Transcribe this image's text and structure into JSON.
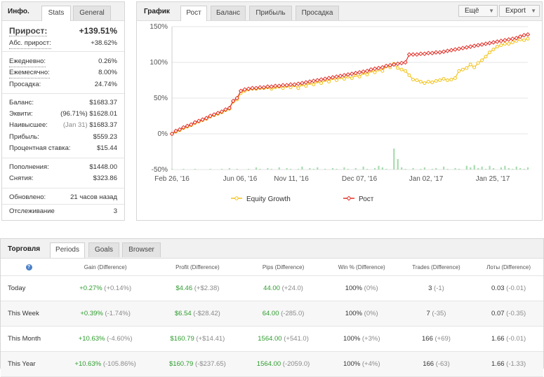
{
  "info": {
    "title": "Инфо.",
    "tabs": [
      "Stats",
      "General"
    ],
    "gain_label": "Прирост:",
    "gain_value": "+139.51%",
    "abs_gain_label": "Абс. прирост:",
    "abs_gain_value": "+38.62%",
    "daily_label": "Ежедневно:",
    "daily_value": "0.26%",
    "monthly_label": "Ежемесячно:",
    "monthly_value": "8.00%",
    "drawdown_label": "Просадка:",
    "drawdown_value": "24.74%",
    "balance_label": "Баланс:",
    "balance_value": "$1683.37",
    "equity_label": "Эквити:",
    "equity_pct": "(96.71%)",
    "equity_value": "$1628.01",
    "highest_label": "Наивысшее:",
    "highest_date": "(Jan 31)",
    "highest_value": "$1683.37",
    "profit_label": "Прибыль:",
    "profit_value": "$559.23",
    "interest_label": "Процентная ставка:",
    "interest_value": "$15.44",
    "deposits_label": "Пополнения:",
    "deposits_value": "$1448.00",
    "withdrawals_label": "Снятия:",
    "withdrawals_value": "$323.86",
    "updated_label": "Обновлено:",
    "updated_value": "21 часов назад",
    "tracking_label": "Отслеживание",
    "tracking_value": "3"
  },
  "graph": {
    "title": "График",
    "tabs": [
      "Рост",
      "Баланс",
      "Прибыль",
      "Просадка"
    ],
    "menu_label": "Ещё",
    "export_label": "Export"
  },
  "chart_data": {
    "type": "line",
    "yticks": [
      "150%",
      "100%",
      "50%",
      "0%",
      "-50%"
    ],
    "ylim": [
      -50,
      150
    ],
    "xticks": [
      "Feb 26, '16",
      "Jun 06, '16",
      "Nov 11, '16",
      "Dec 07, '16",
      "Jan 02, '17",
      "Jan 25, '17"
    ],
    "series": [
      {
        "name": "Equity Growth",
        "color": "#f2c218",
        "values": [
          0,
          3,
          5,
          8,
          10,
          12,
          15,
          17,
          19,
          21,
          24,
          26,
          28,
          30,
          33,
          35,
          45,
          48,
          57,
          60,
          62,
          63,
          63,
          64,
          64,
          65,
          63,
          65,
          66,
          64,
          67,
          65,
          68,
          64,
          69,
          67,
          71,
          69,
          73,
          71,
          75,
          73,
          78,
          75,
          79,
          77,
          80,
          78,
          82,
          80,
          85,
          83,
          88,
          86,
          90,
          88,
          95,
          93,
          98,
          92,
          90,
          88,
          82,
          76,
          75,
          73,
          71,
          73,
          72,
          74,
          75,
          77,
          75,
          76,
          78,
          88,
          90,
          92,
          97,
          93,
          99,
          103,
          108,
          114,
          118,
          122,
          124,
          126,
          126,
          128,
          130,
          132,
          131,
          133
        ]
      },
      {
        "name": "Рост",
        "color": "#e0322a",
        "values": [
          0,
          4,
          6,
          9,
          11,
          13,
          16,
          18,
          20,
          22,
          25,
          27,
          29,
          31,
          34,
          36,
          46,
          50,
          60,
          62,
          63,
          64,
          64,
          65,
          65,
          66,
          66,
          67,
          67,
          68,
          68,
          69,
          69,
          70,
          71,
          72,
          73,
          74,
          75,
          76,
          77,
          78,
          79,
          80,
          81,
          82,
          83,
          84,
          85,
          86,
          87,
          88,
          90,
          91,
          92,
          93,
          95,
          96,
          97,
          98,
          99,
          100,
          111,
          111,
          111,
          112,
          112,
          113,
          113,
          114,
          114,
          115,
          116,
          117,
          118,
          119,
          120,
          121,
          122,
          123,
          124,
          125,
          126,
          127,
          128,
          129,
          130,
          131,
          132,
          133,
          134,
          136,
          138,
          139
        ]
      }
    ],
    "bars": [
      1,
      0,
      0,
      1,
      0,
      0,
      1,
      0,
      0,
      0,
      1,
      0,
      0,
      1,
      0,
      2,
      0,
      1,
      0,
      0,
      1,
      0,
      3,
      1,
      0,
      2,
      1,
      0,
      3,
      0,
      2,
      1,
      0,
      1,
      4,
      0,
      2,
      1,
      3,
      0,
      1,
      0,
      2,
      1,
      0,
      3,
      1,
      0,
      2,
      0,
      4,
      1,
      0,
      2,
      5,
      3,
      1,
      0,
      28,
      14,
      3,
      1,
      0,
      2,
      0,
      1,
      3,
      0,
      1,
      2,
      0,
      4,
      1,
      0,
      2,
      1,
      0,
      5,
      3,
      6,
      2,
      4,
      1,
      5,
      2,
      0,
      3,
      5,
      2,
      1,
      4,
      2,
      1,
      3
    ]
  },
  "trading": {
    "title": "Торговля",
    "tabs": [
      "Periods",
      "Goals",
      "Browser"
    ],
    "help": "?",
    "headers": [
      "Gain (Difference)",
      "Profit (Difference)",
      "Pips (Difference)",
      "Win % (Difference)",
      "Trades (Difference)",
      "Лоты (Difference)"
    ],
    "rows": [
      {
        "period": "Today",
        "gain": "+0.27%",
        "gain_diff": "(+0.14%)",
        "profit": "$4.46",
        "profit_diff": "(+$2.38)",
        "pips": "44.00",
        "pips_diff": "(+24.0)",
        "win": "100%",
        "win_diff": "(0%)",
        "trades": "3",
        "trades_diff": "(-1)",
        "lots": "0.03",
        "lots_diff": "(-0.01)"
      },
      {
        "period": "This Week",
        "gain": "+0.39%",
        "gain_diff": "(-1.74%)",
        "profit": "$6.54",
        "profit_diff": "(-$28.42)",
        "pips": "64.00",
        "pips_diff": "(-285.0)",
        "win": "100%",
        "win_diff": "(0%)",
        "trades": "7",
        "trades_diff": "(-35)",
        "lots": "0.07",
        "lots_diff": "(-0.35)"
      },
      {
        "period": "This Month",
        "gain": "+10.63%",
        "gain_diff": "(-4.60%)",
        "profit": "$160.79",
        "profit_diff": "(+$14.41)",
        "pips": "1564.00",
        "pips_diff": "(+541.0)",
        "win": "100%",
        "win_diff": "(+3%)",
        "trades": "166",
        "trades_diff": "(+69)",
        "lots": "1.66",
        "lots_diff": "(-0.01)"
      },
      {
        "period": "This Year",
        "gain": "+10.63%",
        "gain_diff": "(-105.86%)",
        "profit": "$160.79",
        "profit_diff": "(-$237.65)",
        "pips": "1564.00",
        "pips_diff": "(-2059.0)",
        "win": "100%",
        "win_diff": "(+4%)",
        "trades": "166",
        "trades_diff": "(-63)",
        "lots": "1.66",
        "lots_diff": "(-1.33)"
      }
    ]
  }
}
